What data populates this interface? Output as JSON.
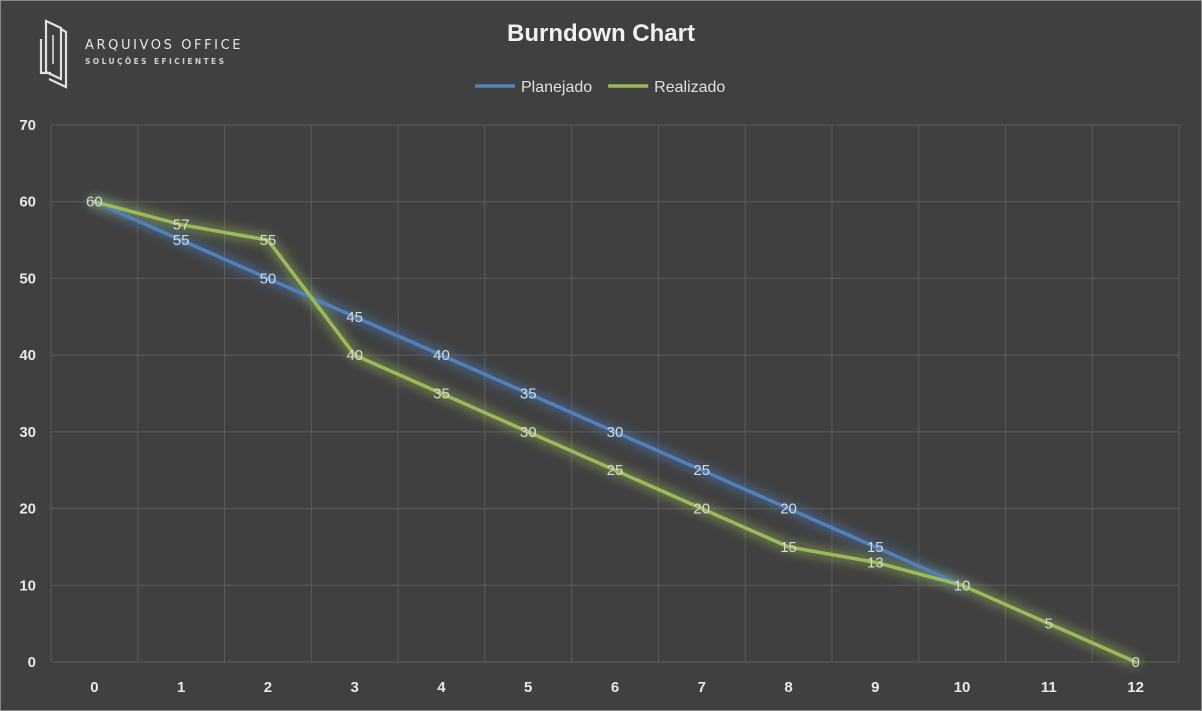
{
  "logo": {
    "name": "ARQUIVOS OFFICE",
    "tagline": "SOLUÇÕES EFICIENTES",
    "icon": "document-folder-icon"
  },
  "chart_data": {
    "type": "line",
    "title": "Burndown Chart",
    "xlabel": "",
    "ylabel": "",
    "x": [
      0,
      1,
      2,
      3,
      4,
      5,
      6,
      7,
      8,
      9,
      10,
      11,
      12
    ],
    "ylim": [
      0,
      70
    ],
    "yticks": [
      0,
      10,
      20,
      30,
      40,
      50,
      60,
      70
    ],
    "grid": true,
    "legend_position": "top-center",
    "series": [
      {
        "name": "Planejado",
        "color": "#4f81bd",
        "values": [
          60,
          55,
          50,
          45,
          40,
          35,
          30,
          25,
          20,
          15,
          10,
          null,
          null
        ]
      },
      {
        "name": "Realizado",
        "color": "#9bbb59",
        "values": [
          60,
          57,
          55,
          40,
          35,
          30,
          25,
          20,
          15,
          13,
          10,
          5,
          0
        ]
      }
    ]
  }
}
